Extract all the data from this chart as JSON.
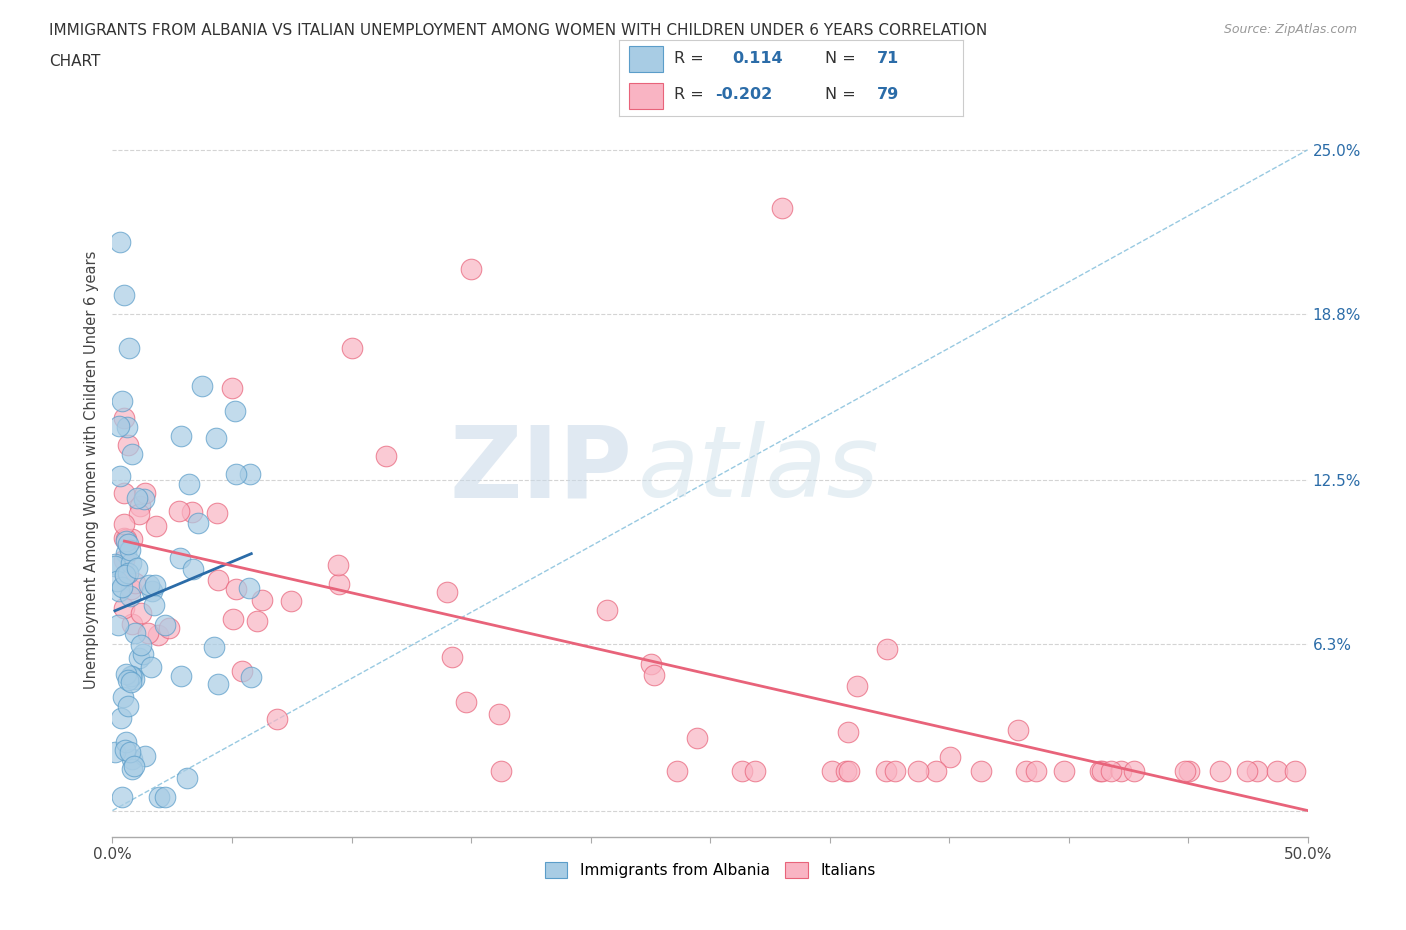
{
  "title_line1": "IMMIGRANTS FROM ALBANIA VS ITALIAN UNEMPLOYMENT AMONG WOMEN WITH CHILDREN UNDER 6 YEARS CORRELATION",
  "title_line2": "CHART",
  "source": "Source: ZipAtlas.com",
  "ylabel": "Unemployment Among Women with Children Under 6 years",
  "xlim": [
    0,
    0.5
  ],
  "ylim": [
    -0.01,
    0.268
  ],
  "ytick_positions": [
    0.0,
    0.063,
    0.125,
    0.188,
    0.25
  ],
  "right_ytick_positions": [
    0.063,
    0.125,
    0.188,
    0.25
  ],
  "right_ytick_labels": [
    "6.3%",
    "12.5%",
    "18.8%",
    "25.0%"
  ],
  "blue_color": "#a8cce4",
  "pink_color": "#f9b4c3",
  "blue_edge_color": "#5b9dc9",
  "pink_edge_color": "#e8637a",
  "blue_trend_color": "#2b6ca8",
  "pink_trend_color": "#e8637a",
  "dashed_line_color": "#7fbcda",
  "blue_r": 0.114,
  "blue_n": 71,
  "pink_r": -0.202,
  "pink_n": 79,
  "legend_label_blue": "Immigrants from Albania",
  "legend_label_pink": "Italians",
  "watermark_zip": "ZIP",
  "watermark_atlas": "atlas",
  "background_color": "#ffffff",
  "grid_color": "#d0d0d0"
}
